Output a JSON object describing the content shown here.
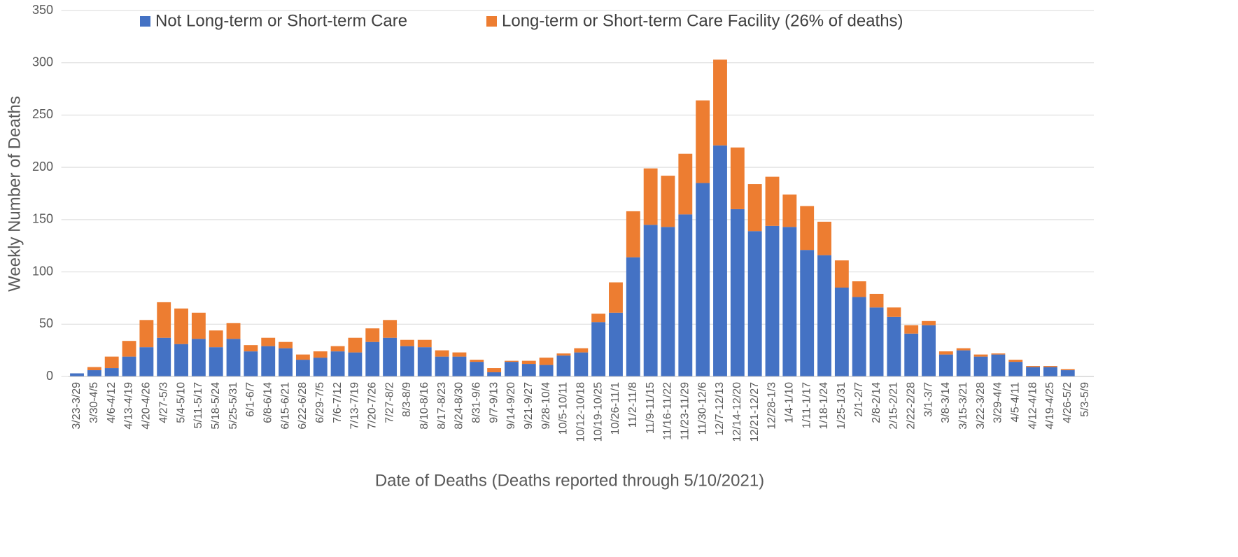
{
  "chart_data": {
    "type": "stacked_bar",
    "x_label": "Date of Deaths (Deaths reported through 5/10/2021)",
    "y_label": "Weekly Number of Deaths",
    "categories": [
      "3/23-3/29",
      "3/30-4/5",
      "4/6-4/12",
      "4/13-4/19",
      "4/20-4/26",
      "4/27-5/3",
      "5/4-5/10",
      "5/11-5/17",
      "5/18-5/24",
      "5/25-5/31",
      "6/1-6/7",
      "6/8-6/14",
      "6/15-6/21",
      "6/22-6/28",
      "6/29-7/5",
      "7/6-7/12",
      "7/13-7/19",
      "7/20-7/26",
      "7/27-8/2",
      "8/3-8/9",
      "8/10-8/16",
      "8/17-8/23",
      "8/24-8/30",
      "8/31-9/6",
      "9/7-9/13",
      "9/14-9/20",
      "9/21-9/27",
      "9/28-10/4",
      "10/5-10/11",
      "10/12-10/18",
      "10/19-10/25",
      "10/26-11/1",
      "11/2-11/8",
      "11/9-11/15",
      "11/16-11/22",
      "11/23-11/29",
      "11/30-12/6",
      "12/7-12/13",
      "12/14-12/20",
      "12/21-12/27",
      "12/28-1/3",
      "1/4-1/10",
      "1/11-1/17",
      "1/18-1/24",
      "1/25-1/31",
      "2/1-2/7",
      "2/8-2/14",
      "2/15-2/21",
      "2/22-2/28",
      "3/1-3/7",
      "3/8-3/14",
      "3/15-3/21",
      "3/22-3/28",
      "3/29-4/4",
      "4/5-4/11",
      "4/12-4/18",
      "4/19-4/25",
      "4/26-5/2",
      "5/3-5/9"
    ],
    "series": [
      {
        "name": "Not Long-term or Short-term Care",
        "color": "#4472c4",
        "values": [
          3,
          6,
          8,
          19,
          28,
          37,
          31,
          36,
          28,
          36,
          24,
          29,
          27,
          16,
          18,
          24,
          23,
          33,
          37,
          29,
          28,
          19,
          19,
          14,
          4,
          14,
          12,
          11,
          20,
          23,
          52,
          61,
          114,
          145,
          143,
          155,
          185,
          221,
          160,
          139,
          144,
          143,
          121,
          116,
          85,
          76,
          66,
          57,
          41,
          49,
          21,
          25,
          19,
          21,
          14,
          9,
          9,
          6,
          0
        ]
      },
      {
        "name": "Long-term or Short-term Care Facility (26% of deaths)",
        "color": "#ed7d31",
        "values": [
          0,
          3,
          11,
          15,
          26,
          34,
          34,
          25,
          16,
          15,
          6,
          8,
          6,
          5,
          6,
          5,
          14,
          13,
          17,
          6,
          7,
          6,
          4,
          2,
          4,
          1,
          3,
          7,
          2,
          4,
          8,
          29,
          44,
          54,
          49,
          58,
          79,
          82,
          59,
          45,
          47,
          31,
          42,
          32,
          26,
          15,
          13,
          9,
          8,
          4,
          3,
          2,
          2,
          1,
          2,
          1,
          1,
          1,
          0
        ]
      }
    ],
    "ylim": [
      0,
      350
    ],
    "yticks": [
      0,
      50,
      100,
      150,
      200,
      250,
      300,
      350
    ],
    "grid": true
  }
}
